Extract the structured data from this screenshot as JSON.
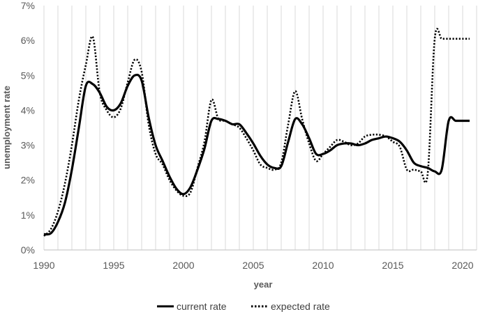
{
  "chart_data": {
    "type": "line",
    "title": "",
    "xlabel": "year",
    "ylabel": "unemployment rate",
    "xlim": [
      1990,
      2021
    ],
    "ylim": [
      0,
      7
    ],
    "x_ticks": [
      "1990",
      "1995",
      "2000",
      "2005",
      "2010",
      "2015",
      "2020"
    ],
    "y_ticks": [
      "0%",
      "1%",
      "2%",
      "3%",
      "4%",
      "5%",
      "6%",
      "7%"
    ],
    "grid": "vertical lines at each year",
    "legend_position": "bottom",
    "series": [
      {
        "name": "current rate",
        "style": "solid",
        "color": "#000000",
        "x": [
          1990,
          1990.5,
          1991,
          1991.5,
          1992,
          1992.5,
          1993,
          1993.5,
          1994,
          1994.5,
          1995,
          1995.5,
          1996,
          1996.5,
          1997,
          1997.5,
          1998,
          1998.5,
          1999,
          1999.5,
          2000,
          2000.5,
          2001,
          2001.5,
          2002,
          2002.5,
          2003,
          2003.5,
          2004,
          2004.5,
          2005,
          2005.5,
          2006,
          2006.5,
          2007,
          2007.5,
          2008,
          2008.5,
          2009,
          2009.5,
          2010,
          2010.5,
          2011,
          2011.5,
          2012,
          2012.5,
          2013,
          2013.5,
          2014,
          2014.5,
          2015,
          2015.5,
          2016,
          2016.5,
          2017,
          2017.5,
          2018,
          2018.5,
          2019,
          2019.5,
          2020,
          2020.5
        ],
        "values": [
          0.45,
          0.48,
          0.8,
          1.35,
          2.3,
          3.5,
          4.7,
          4.75,
          4.5,
          4.1,
          4.0,
          4.2,
          4.7,
          5.0,
          4.85,
          3.8,
          3.0,
          2.55,
          2.1,
          1.75,
          1.6,
          1.8,
          2.3,
          2.9,
          3.7,
          3.75,
          3.7,
          3.6,
          3.6,
          3.35,
          3.05,
          2.7,
          2.45,
          2.35,
          2.4,
          3.1,
          3.75,
          3.6,
          3.2,
          2.75,
          2.75,
          2.85,
          3.0,
          3.05,
          3.05,
          3.0,
          3.05,
          3.15,
          3.2,
          3.25,
          3.2,
          3.1,
          2.85,
          2.5,
          2.4,
          2.35,
          2.25,
          2.3,
          3.7,
          3.7,
          3.7,
          3.7
        ]
      },
      {
        "name": "expected rate",
        "style": "dotted",
        "color": "#000000",
        "x": [
          1990,
          1990.5,
          1991,
          1991.5,
          1992,
          1992.5,
          1993,
          1993.5,
          1994,
          1994.5,
          1995,
          1995.5,
          1996,
          1996.5,
          1997,
          1997.5,
          1998,
          1998.5,
          1999,
          1999.5,
          2000,
          2000.5,
          2001,
          2001.5,
          2002,
          2002.5,
          2003,
          2003.5,
          2004,
          2004.5,
          2005,
          2005.5,
          2006,
          2006.5,
          2007,
          2007.5,
          2008,
          2008.5,
          2009,
          2009.5,
          2010,
          2010.5,
          2011,
          2011.5,
          2012,
          2012.5,
          2013,
          2013.5,
          2014,
          2014.5,
          2015,
          2015.5,
          2016,
          2016.5,
          2017,
          2017.5,
          2018,
          2018.5,
          2019,
          2019.5,
          2020,
          2020.5
        ],
        "values": [
          0.4,
          0.6,
          1.1,
          1.9,
          3.0,
          4.3,
          5.3,
          6.1,
          4.5,
          4.0,
          3.8,
          4.05,
          4.8,
          5.45,
          5.1,
          3.6,
          2.75,
          2.45,
          2.0,
          1.7,
          1.55,
          1.65,
          2.35,
          3.1,
          4.3,
          3.75,
          3.7,
          3.6,
          3.5,
          3.2,
          2.85,
          2.45,
          2.35,
          2.3,
          2.5,
          3.6,
          4.55,
          3.75,
          3.05,
          2.55,
          2.75,
          2.95,
          3.15,
          3.1,
          3.0,
          3.05,
          3.25,
          3.3,
          3.3,
          3.25,
          3.1,
          2.95,
          2.3,
          2.3,
          2.25,
          2.2,
          6.05,
          6.05,
          6.05,
          6.05,
          6.05,
          6.05
        ]
      }
    ]
  }
}
